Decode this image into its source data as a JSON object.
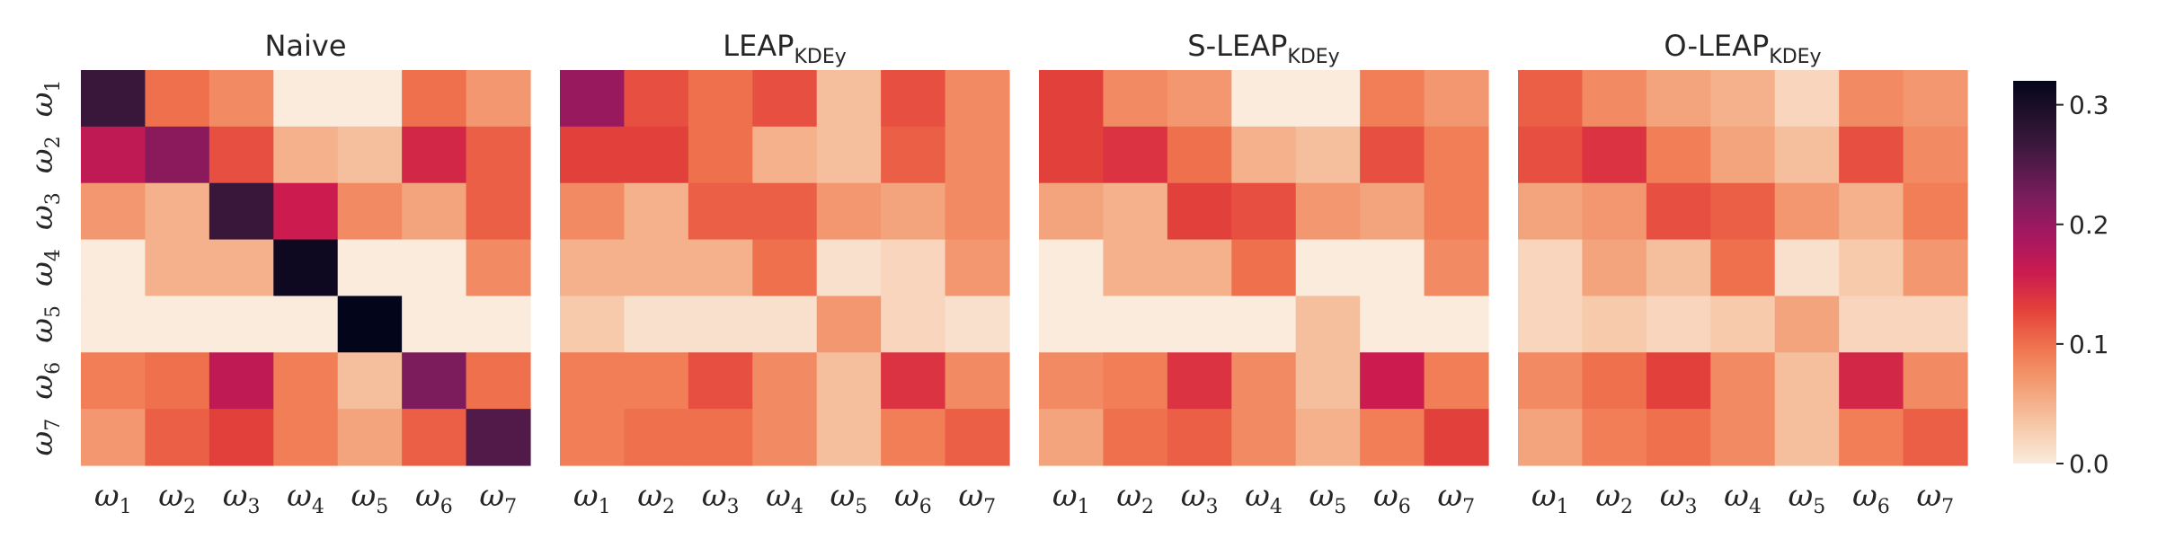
{
  "chart_data": {
    "type": "heatmap",
    "row_labels": [
      "ω1",
      "ω2",
      "ω3",
      "ω4",
      "ω5",
      "ω6",
      "ω7"
    ],
    "col_labels": [
      "ω1",
      "ω2",
      "ω3",
      "ω4",
      "ω5",
      "ω6",
      "ω7"
    ],
    "colorbar": {
      "range": [
        0,
        0.32
      ],
      "ticks": [
        "0.0",
        "0.1",
        "0.2",
        "0.3"
      ],
      "tick_values": [
        0.0,
        0.1,
        0.2,
        0.3
      ],
      "colormap": "rocket_r"
    },
    "panels": [
      {
        "title_main": "Naive",
        "title_sub": "",
        "values": [
          [
            0.27,
            0.1,
            0.08,
            0.0,
            0.0,
            0.1,
            0.07
          ],
          [
            0.17,
            0.21,
            0.12,
            0.05,
            0.04,
            0.15,
            0.11
          ],
          [
            0.07,
            0.05,
            0.27,
            0.16,
            0.08,
            0.06,
            0.11
          ],
          [
            0.0,
            0.05,
            0.05,
            0.31,
            0.0,
            0.0,
            0.08
          ],
          [
            0.0,
            0.0,
            0.0,
            0.0,
            0.32,
            0.0,
            0.0
          ],
          [
            0.09,
            0.1,
            0.17,
            0.09,
            0.04,
            0.22,
            0.1
          ],
          [
            0.07,
            0.11,
            0.13,
            0.09,
            0.06,
            0.11,
            0.25
          ]
        ]
      },
      {
        "title_main": "LEAP",
        "title_sub": "KDEy",
        "values": [
          [
            0.2,
            0.12,
            0.1,
            0.12,
            0.04,
            0.12,
            0.08
          ],
          [
            0.13,
            0.13,
            0.1,
            0.05,
            0.04,
            0.11,
            0.08
          ],
          [
            0.08,
            0.05,
            0.11,
            0.11,
            0.07,
            0.06,
            0.08
          ],
          [
            0.05,
            0.05,
            0.05,
            0.1,
            0.01,
            0.02,
            0.07
          ],
          [
            0.03,
            0.01,
            0.01,
            0.01,
            0.07,
            0.02,
            0.01
          ],
          [
            0.09,
            0.09,
            0.12,
            0.08,
            0.04,
            0.14,
            0.08
          ],
          [
            0.09,
            0.1,
            0.1,
            0.08,
            0.04,
            0.09,
            0.11
          ]
        ]
      },
      {
        "title_main": "S-LEAP",
        "title_sub": "KDEy",
        "values": [
          [
            0.13,
            0.08,
            0.07,
            0.0,
            0.0,
            0.09,
            0.07
          ],
          [
            0.13,
            0.14,
            0.1,
            0.05,
            0.04,
            0.12,
            0.09
          ],
          [
            0.06,
            0.05,
            0.13,
            0.12,
            0.07,
            0.06,
            0.09
          ],
          [
            0.0,
            0.05,
            0.05,
            0.1,
            0.0,
            0.0,
            0.08
          ],
          [
            0.0,
            0.0,
            0.0,
            0.0,
            0.04,
            0.0,
            0.0
          ],
          [
            0.08,
            0.09,
            0.14,
            0.08,
            0.04,
            0.16,
            0.09
          ],
          [
            0.06,
            0.1,
            0.11,
            0.08,
            0.05,
            0.09,
            0.13
          ]
        ]
      },
      {
        "title_main": "O-LEAP",
        "title_sub": "KDEy",
        "values": [
          [
            0.11,
            0.08,
            0.06,
            0.05,
            0.02,
            0.08,
            0.07
          ],
          [
            0.12,
            0.14,
            0.09,
            0.06,
            0.04,
            0.12,
            0.08
          ],
          [
            0.06,
            0.07,
            0.12,
            0.11,
            0.07,
            0.05,
            0.09
          ],
          [
            0.02,
            0.06,
            0.04,
            0.1,
            0.01,
            0.03,
            0.07
          ],
          [
            0.02,
            0.03,
            0.02,
            0.03,
            0.06,
            0.02,
            0.02
          ],
          [
            0.08,
            0.1,
            0.13,
            0.08,
            0.04,
            0.15,
            0.08
          ],
          [
            0.06,
            0.09,
            0.1,
            0.08,
            0.04,
            0.09,
            0.11
          ]
        ]
      }
    ]
  }
}
